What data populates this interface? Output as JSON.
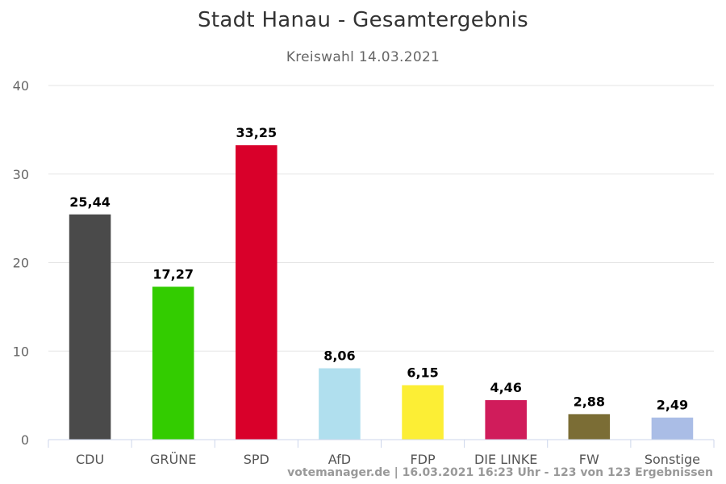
{
  "chart_data": {
    "type": "bar",
    "title": "Stadt Hanau - Gesamtergebnis",
    "subtitle": "Kreiswahl 14.03.2021",
    "categories": [
      "CDU",
      "GRÜNE",
      "SPD",
      "AfD",
      "FDP",
      "DIE LINKE",
      "FW",
      "Sonstige"
    ],
    "values": [
      25.44,
      17.27,
      33.25,
      8.06,
      6.15,
      4.46,
      2.88,
      2.49
    ],
    "data_labels": [
      "25,44",
      "17,27",
      "33,25",
      "8,06",
      "6,15",
      "4,46",
      "2,88",
      "2,49"
    ],
    "colors": [
      "#4a4a4a",
      "#33cc00",
      "#d9002a",
      "#b0dfee",
      "#fcee35",
      "#d01c5b",
      "#7b6d35",
      "#aabde6"
    ],
    "ylim": [
      0,
      40
    ],
    "yticks": [
      0,
      10,
      20,
      30,
      40
    ],
    "grid": true,
    "legend": "none",
    "xlabel": "",
    "ylabel": ""
  },
  "credit": "votemanager.de | 16.03.2021 16:23 Uhr - 123 von 123 Ergebnissen"
}
